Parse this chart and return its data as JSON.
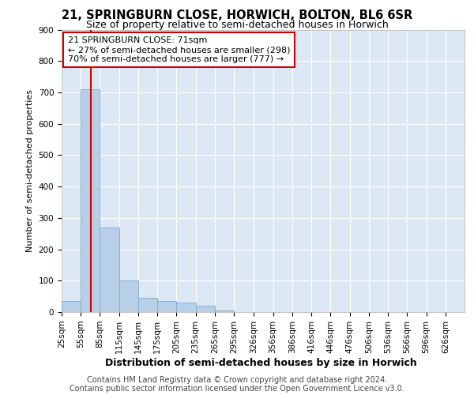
{
  "title": "21, SPRINGBURN CLOSE, HORWICH, BOLTON, BL6 6SR",
  "subtitle": "Size of property relative to semi-detached houses in Horwich",
  "xlabel": "Distribution of semi-detached houses by size in Horwich",
  "ylabel": "Number of semi-detached properties",
  "footer_line1": "Contains HM Land Registry data © Crown copyright and database right 2024.",
  "footer_line2": "Contains public sector information licensed under the Open Government Licence v3.0.",
  "annotation_line1": "21 SPRINGBURN CLOSE: 71sqm",
  "annotation_line2": "← 27% of semi-detached houses are smaller (298)",
  "annotation_line3": "70% of semi-detached houses are larger (777) →",
  "subject_size": 71,
  "bin_edges": [
    25,
    55,
    85,
    115,
    145,
    175,
    205,
    235,
    265,
    295,
    326,
    356,
    386,
    416,
    446,
    476,
    506,
    536,
    566,
    596,
    626,
    656
  ],
  "bin_labels": [
    "25sqm",
    "55sqm",
    "85sqm",
    "115sqm",
    "145sqm",
    "175sqm",
    "205sqm",
    "235sqm",
    "265sqm",
    "295sqm",
    "326sqm",
    "356sqm",
    "386sqm",
    "416sqm",
    "446sqm",
    "476sqm",
    "506sqm",
    "536sqm",
    "566sqm",
    "596sqm",
    "626sqm"
  ],
  "bar_heights": [
    35,
    710,
    270,
    100,
    45,
    35,
    30,
    20,
    5,
    0,
    0,
    0,
    0,
    0,
    0,
    0,
    0,
    0,
    0,
    0,
    0
  ],
  "bar_color": "#b8cfe8",
  "bar_edge_color": "#7aadd4",
  "red_line_color": "#cc0000",
  "background_color": "#dde8f5",
  "grid_color": "#ffffff",
  "ylim": [
    0,
    900
  ],
  "yticks": [
    0,
    100,
    200,
    300,
    400,
    500,
    600,
    700,
    800,
    900
  ],
  "title_fontsize": 10.5,
  "subtitle_fontsize": 9,
  "annotation_fontsize": 8,
  "ylabel_fontsize": 8,
  "xlabel_fontsize": 9,
  "tick_fontsize": 7.5,
  "footer_fontsize": 7
}
